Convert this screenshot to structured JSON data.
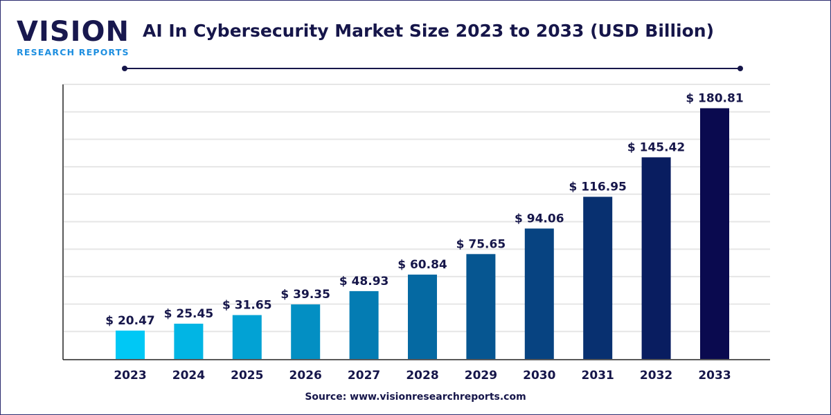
{
  "logo": {
    "main": "VISION",
    "sub": "RESEARCH REPORTS"
  },
  "source": "Source: www.visionresearchreports.com",
  "colors": {
    "bar_start": "#00c8f5",
    "bar_end": "#0a0a4f",
    "text": "#16164a",
    "grid": "#e6e6e6"
  },
  "chart_data": {
    "type": "bar",
    "title": "AI In Cybersecurity Market Size 2023 to 2033 (USD Billion)",
    "xlabel": "",
    "ylabel": "",
    "categories": [
      "2023",
      "2024",
      "2025",
      "2026",
      "2027",
      "2028",
      "2029",
      "2030",
      "2031",
      "2032",
      "2033"
    ],
    "values": [
      20.47,
      25.45,
      31.65,
      39.35,
      48.93,
      60.84,
      75.65,
      94.06,
      116.95,
      145.42,
      180.81
    ],
    "data_labels": [
      "$ 20.47",
      "$ 25.45",
      "$ 31.65",
      "$ 39.35",
      "$ 48.93",
      "$ 60.84",
      "$ 75.65",
      "$ 94.06",
      "$ 116.95",
      "$ 145.42",
      "$ 180.81"
    ],
    "ylim": [
      0,
      200
    ],
    "grid": true,
    "y_tick_labels_shown": false
  }
}
